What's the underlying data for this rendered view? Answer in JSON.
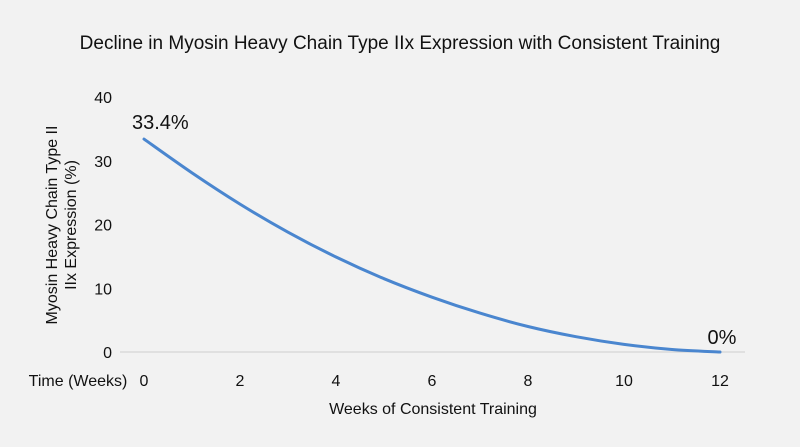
{
  "chart_data": {
    "type": "line",
    "title": "Decline in Myosin Heavy Chain Type IIx Expression with Consistent Training",
    "xlabel": "Weeks of Consistent Training",
    "ylabel_line1": "Myosin Heavy Chain Type II",
    "ylabel_line2": "IIx Expression (%)",
    "x_tick_prefix": "Time (Weeks)",
    "x_ticks": [
      0,
      2,
      4,
      6,
      8,
      10,
      12
    ],
    "y_ticks": [
      0,
      10,
      20,
      30,
      40
    ],
    "xlim": [
      0,
      12
    ],
    "ylim": [
      0,
      40
    ],
    "grid": false,
    "line_color": "#4a86cf",
    "series": [
      {
        "x": [
          0,
          1,
          2,
          3,
          4,
          5,
          6,
          7,
          8,
          9,
          10,
          11,
          12
        ],
        "y": [
          33.4,
          28.1,
          23.2,
          18.8,
          14.9,
          11.5,
          8.6,
          6.1,
          4.0,
          2.4,
          1.2,
          0.4,
          0
        ]
      }
    ],
    "annotations": [
      {
        "text": "33.4%",
        "x": 0,
        "y": 33.4
      },
      {
        "text": "0%",
        "x": 12,
        "y": 0
      }
    ]
  }
}
